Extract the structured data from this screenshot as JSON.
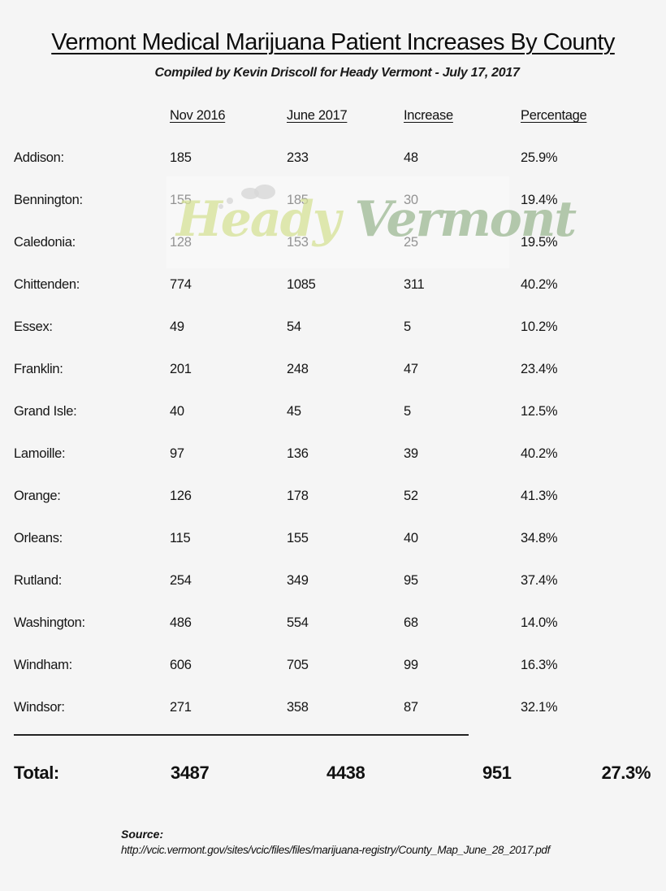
{
  "document": {
    "title": "Vermont Medical Marijuana Patient Increases By County",
    "subtitle": "Compiled by Kevin Driscoll for Heady Vermont - July 17, 2017",
    "watermark": {
      "word1": "Heady",
      "word2": "Vermont"
    }
  },
  "table": {
    "headers": [
      "",
      "Nov 2016",
      "June 2017",
      "Increase",
      "Percentage"
    ],
    "rows": [
      {
        "county": "Addison:",
        "nov2016": "185",
        "jun2017": "233",
        "increase": "48",
        "percentage": "25.9%"
      },
      {
        "county": "Bennington:",
        "nov2016": "155",
        "jun2017": "185",
        "increase": "30",
        "percentage": "19.4%"
      },
      {
        "county": "Caledonia:",
        "nov2016": "128",
        "jun2017": "153",
        "increase": "25",
        "percentage": "19.5%"
      },
      {
        "county": "Chittenden:",
        "nov2016": "774",
        "jun2017": "1085",
        "increase": "311",
        "percentage": "40.2%"
      },
      {
        "county": "Essex:",
        "nov2016": "49",
        "jun2017": "54",
        "increase": "5",
        "percentage": "10.2%"
      },
      {
        "county": "Franklin:",
        "nov2016": "201",
        "jun2017": "248",
        "increase": "47",
        "percentage": "23.4%"
      },
      {
        "county": "Grand Isle:",
        "nov2016": "40",
        "jun2017": "45",
        "increase": "5",
        "percentage": "12.5%"
      },
      {
        "county": "Lamoille:",
        "nov2016": "97",
        "jun2017": "136",
        "increase": "39",
        "percentage": "40.2%"
      },
      {
        "county": "Orange:",
        "nov2016": "126",
        "jun2017": "178",
        "increase": "52",
        "percentage": "41.3%"
      },
      {
        "county": "Orleans:",
        "nov2016": "115",
        "jun2017": "155",
        "increase": "40",
        "percentage": "34.8%"
      },
      {
        "county": "Rutland:",
        "nov2016": "254",
        "jun2017": "349",
        "increase": "95",
        "percentage": "37.4%"
      },
      {
        "county": "Washington:",
        "nov2016": "486",
        "jun2017": "554",
        "increase": "68",
        "percentage": "14.0%"
      },
      {
        "county": "Windham:",
        "nov2016": "606",
        "jun2017": "705",
        "increase": "99",
        "percentage": "16.3%"
      },
      {
        "county": "Windsor:",
        "nov2016": "271",
        "jun2017": "358",
        "increase": "87",
        "percentage": "32.1%"
      }
    ],
    "total": {
      "label": "Total:",
      "nov2016": "3487",
      "jun2017": "4438",
      "increase": "951",
      "percentage": "27.3%"
    }
  },
  "source": {
    "label": "Source:",
    "url": "http://vcic.vermont.gov/sites/vcic/files/files/marijuana-registry/County_Map_June_28_2017.pdf"
  }
}
